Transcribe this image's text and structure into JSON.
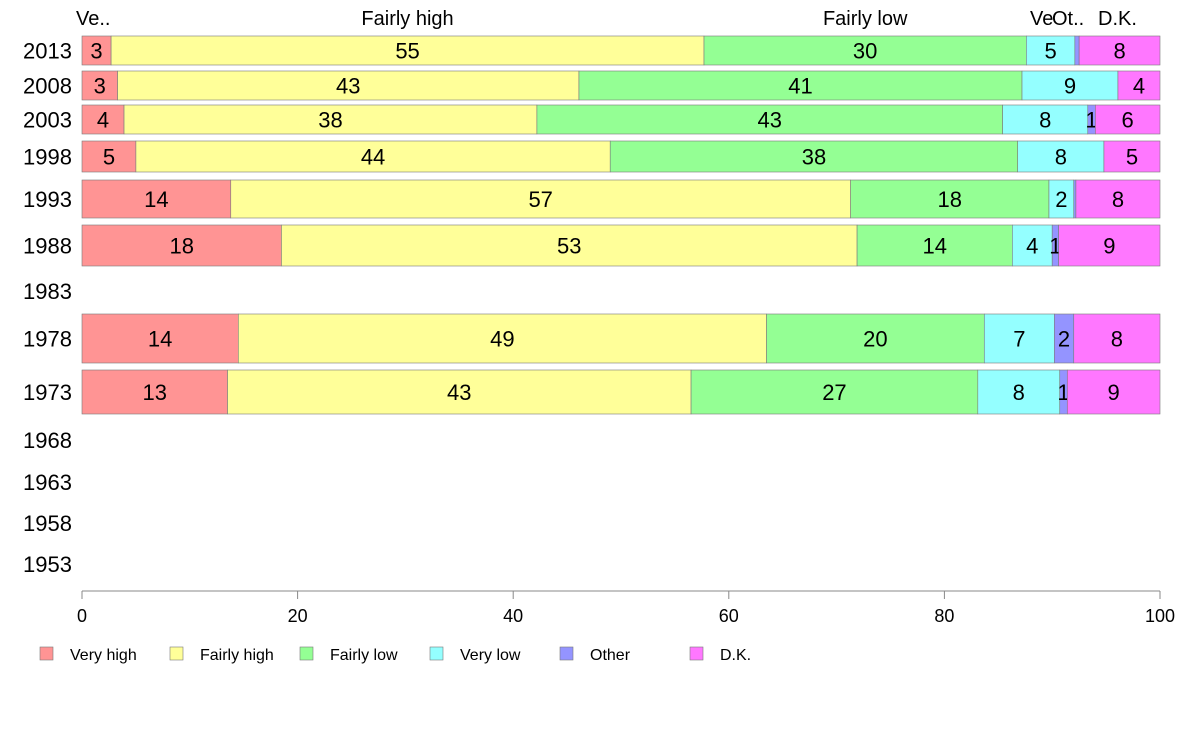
{
  "chart_data": {
    "type": "bar",
    "orientation": "horizontal",
    "stacked": true,
    "title": "",
    "xlabel": "",
    "ylabel": "",
    "xlim": [
      0,
      100
    ],
    "x_ticks": [
      "0",
      "20",
      "40",
      "60",
      "80",
      "100"
    ],
    "grid": false,
    "legend_position": "bottom",
    "categories": [
      "2013",
      "2008",
      "2003",
      "1998",
      "1993",
      "1988",
      "1983",
      "1978",
      "1973",
      "1968",
      "1963",
      "1958",
      "1953"
    ],
    "top_labels": [
      "Ve..",
      "Fairly high",
      "Fairly low",
      "Ve",
      "Ot..",
      "D.K."
    ],
    "series": [
      {
        "name": "Very high",
        "color": "#ff9494",
        "values": [
          2.7,
          3.3,
          3.9,
          5.0,
          13.8,
          18.5,
          null,
          14.5,
          13.5,
          null,
          null,
          null,
          null
        ],
        "labels": [
          "3",
          "3",
          "4",
          "5",
          "14",
          "18",
          "",
          "14",
          "13",
          "",
          "",
          "",
          ""
        ]
      },
      {
        "name": "Fairly high",
        "color": "#ffff99",
        "values": [
          55.0,
          42.8,
          38.3,
          44.0,
          57.5,
          53.4,
          null,
          49.0,
          43.0,
          null,
          null,
          null,
          null
        ],
        "labels": [
          "55",
          "43",
          "38",
          "44",
          "57",
          "53",
          "",
          "49",
          "43",
          "",
          "",
          "",
          ""
        ]
      },
      {
        "name": "Fairly low",
        "color": "#94ff94",
        "values": [
          29.9,
          41.1,
          43.2,
          37.8,
          18.4,
          14.4,
          null,
          20.2,
          26.6,
          null,
          null,
          null,
          null
        ],
        "labels": [
          "30",
          "41",
          "43",
          "38",
          "18",
          "14",
          "",
          "20",
          "27",
          "",
          "",
          "",
          ""
        ]
      },
      {
        "name": "Very low",
        "color": "#94ffff",
        "values": [
          4.5,
          8.9,
          7.9,
          8.0,
          2.3,
          3.7,
          null,
          6.5,
          7.6,
          null,
          null,
          null,
          null
        ],
        "labels": [
          "5",
          "9",
          "8",
          "8",
          "2",
          "4",
          "",
          "7",
          "8",
          "",
          "",
          "",
          ""
        ]
      },
      {
        "name": "Other",
        "color": "#9494ff",
        "values": [
          0.4,
          0.0,
          0.7,
          0.0,
          0.2,
          0.6,
          null,
          1.8,
          0.7,
          null,
          null,
          null,
          null
        ],
        "labels": [
          "",
          "",
          "1",
          "",
          "",
          "1",
          "",
          "2",
          "1",
          "",
          "",
          "",
          ""
        ]
      },
      {
        "name": "D.K.",
        "color": "#ff77ff",
        "values": [
          7.5,
          3.9,
          6.0,
          5.2,
          7.8,
          9.4,
          null,
          8.0,
          8.6,
          null,
          null,
          null,
          null
        ],
        "labels": [
          "8",
          "4",
          "6",
          "5",
          "8",
          "9",
          "",
          "8",
          "9",
          "",
          "",
          "",
          ""
        ]
      }
    ]
  }
}
